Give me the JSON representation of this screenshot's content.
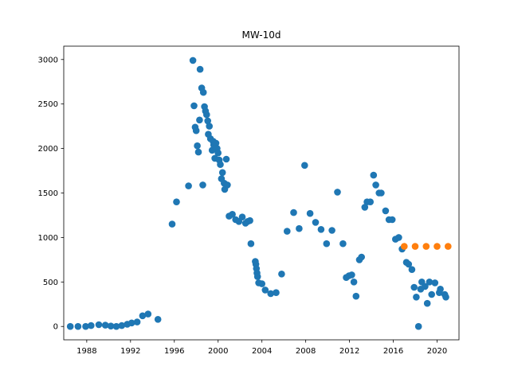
{
  "chart_data": {
    "type": "scatter",
    "title": "MW-10d",
    "xlabel": "",
    "ylabel": "",
    "xlim": [
      1985.9,
      2022.0
    ],
    "ylim": [
      -150,
      3150
    ],
    "x_ticks": [
      1988,
      1992,
      1996,
      2000,
      2004,
      2008,
      2012,
      2016,
      2020
    ],
    "y_ticks": [
      0,
      500,
      1000,
      1500,
      2000,
      2500,
      3000
    ],
    "grid": false,
    "legend": "none",
    "series": [
      {
        "color": "#1f77b4",
        "points": [
          [
            1986.5,
            0
          ],
          [
            1987.2,
            0
          ],
          [
            1987.9,
            0
          ],
          [
            1988.4,
            10
          ],
          [
            1989.1,
            20
          ],
          [
            1989.7,
            15
          ],
          [
            1990.2,
            5
          ],
          [
            1990.7,
            0
          ],
          [
            1991.2,
            10
          ],
          [
            1991.7,
            25
          ],
          [
            1992.1,
            40
          ],
          [
            1992.6,
            50
          ],
          [
            1993.1,
            120
          ],
          [
            1993.6,
            140
          ],
          [
            1994.5,
            80
          ],
          [
            1995.8,
            1150
          ],
          [
            1996.2,
            1400
          ],
          [
            1997.3,
            1580
          ],
          [
            1997.7,
            2990
          ],
          [
            1997.8,
            2480
          ],
          [
            1997.9,
            2240
          ],
          [
            1998.0,
            2200
          ],
          [
            1998.1,
            2030
          ],
          [
            1998.2,
            1960
          ],
          [
            1998.3,
            2320
          ],
          [
            1998.35,
            2890
          ],
          [
            1998.5,
            2680
          ],
          [
            1998.6,
            1590
          ],
          [
            1998.65,
            2630
          ],
          [
            1998.75,
            2470
          ],
          [
            1998.85,
            2420
          ],
          [
            1998.95,
            2380
          ],
          [
            1999.05,
            2310
          ],
          [
            1999.1,
            2160
          ],
          [
            1999.2,
            2250
          ],
          [
            1999.3,
            2110
          ],
          [
            1999.45,
            1980
          ],
          [
            1999.55,
            2080
          ],
          [
            1999.6,
            2040
          ],
          [
            1999.7,
            1890
          ],
          [
            1999.8,
            2060
          ],
          [
            1999.9,
            2000
          ],
          [
            2000.0,
            1950
          ],
          [
            2000.1,
            1870
          ],
          [
            2000.2,
            1820
          ],
          [
            2000.3,
            1660
          ],
          [
            2000.4,
            1730
          ],
          [
            2000.55,
            1610
          ],
          [
            2000.6,
            1540
          ],
          [
            2000.75,
            1880
          ],
          [
            2000.85,
            1590
          ],
          [
            2001.0,
            1240
          ],
          [
            2001.3,
            1260
          ],
          [
            2001.6,
            1200
          ],
          [
            2001.9,
            1180
          ],
          [
            2002.2,
            1230
          ],
          [
            2002.5,
            1160
          ],
          [
            2002.7,
            1180
          ],
          [
            2002.9,
            1190
          ],
          [
            2003.0,
            930
          ],
          [
            2003.4,
            730
          ],
          [
            2003.45,
            700
          ],
          [
            2003.5,
            650
          ],
          [
            2003.55,
            600
          ],
          [
            2003.6,
            560
          ],
          [
            2003.7,
            490
          ],
          [
            2004.0,
            480
          ],
          [
            2004.3,
            410
          ],
          [
            2004.8,
            370
          ],
          [
            2005.3,
            380
          ],
          [
            2005.8,
            590
          ],
          [
            2006.3,
            1070
          ],
          [
            2006.9,
            1280
          ],
          [
            2007.4,
            1100
          ],
          [
            2007.9,
            1810
          ],
          [
            2008.4,
            1270
          ],
          [
            2008.9,
            1170
          ],
          [
            2009.4,
            1090
          ],
          [
            2009.9,
            930
          ],
          [
            2010.4,
            1080
          ],
          [
            2010.9,
            1510
          ],
          [
            2011.4,
            930
          ],
          [
            2011.7,
            550
          ],
          [
            2011.95,
            570
          ],
          [
            2012.2,
            580
          ],
          [
            2012.4,
            500
          ],
          [
            2012.6,
            340
          ],
          [
            2012.9,
            750
          ],
          [
            2013.1,
            780
          ],
          [
            2013.4,
            1340
          ],
          [
            2013.6,
            1400
          ],
          [
            2013.9,
            1400
          ],
          [
            2014.2,
            1700
          ],
          [
            2014.4,
            1590
          ],
          [
            2014.7,
            1500
          ],
          [
            2014.9,
            1500
          ],
          [
            2015.3,
            1300
          ],
          [
            2015.6,
            1200
          ],
          [
            2015.9,
            1200
          ],
          [
            2016.2,
            980
          ],
          [
            2016.5,
            1000
          ],
          [
            2016.8,
            870
          ],
          [
            2017.2,
            720
          ],
          [
            2017.4,
            700
          ],
          [
            2017.7,
            640
          ],
          [
            2017.9,
            440
          ],
          [
            2018.1,
            330
          ],
          [
            2018.3,
            0
          ],
          [
            2018.5,
            420
          ],
          [
            2018.6,
            500
          ],
          [
            2018.9,
            450
          ],
          [
            2019.1,
            260
          ],
          [
            2019.3,
            500
          ],
          [
            2019.5,
            360
          ],
          [
            2019.8,
            490
          ],
          [
            2020.2,
            380
          ],
          [
            2020.3,
            420
          ],
          [
            2020.7,
            360
          ],
          [
            2020.8,
            330
          ]
        ]
      },
      {
        "color": "#ff7f0e",
        "points": [
          [
            2017.0,
            900
          ],
          [
            2018.0,
            900
          ],
          [
            2019.0,
            900
          ],
          [
            2020.0,
            900
          ],
          [
            2021.0,
            900
          ]
        ]
      }
    ]
  }
}
